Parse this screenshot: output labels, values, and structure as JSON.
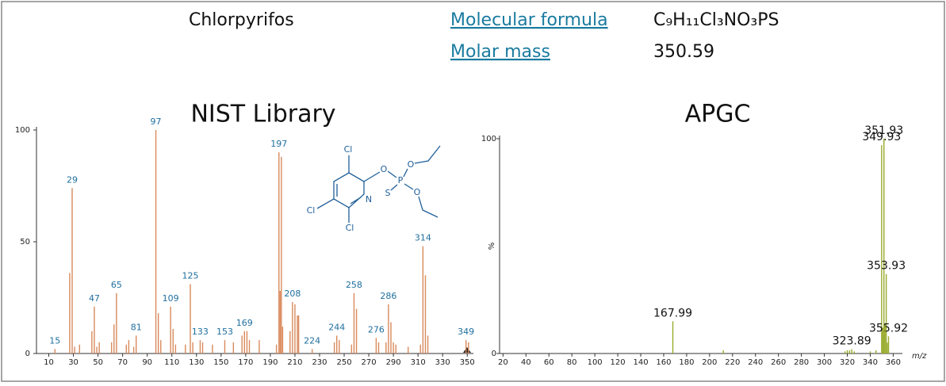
{
  "header": {
    "name": "Chlorpyrifos",
    "formula_label": "Molecular formula",
    "formula": "C₉H₁₁Cl₃NO₃PS",
    "mass_label": "Molar mass",
    "mass": "350.59"
  },
  "structure": {
    "atoms": [
      "Cl",
      "O",
      "O",
      "P",
      "S",
      "O",
      "N",
      "Cl",
      "Cl"
    ]
  },
  "chart_data": [
    {
      "type": "bar",
      "title": "NIST Library",
      "xlim": [
        0,
        355
      ],
      "xticks": [
        10,
        30,
        50,
        70,
        90,
        110,
        130,
        150,
        170,
        190,
        210,
        230,
        250,
        270,
        290,
        310,
        330,
        350
      ],
      "ylim": [
        0,
        100
      ],
      "yticks": [
        0,
        50,
        100
      ],
      "series": [
        {
          "color": "#d98a5c",
          "label_color": "#1f6f9e",
          "show_labels": true,
          "x": [
            15,
            29,
            47,
            65,
            81,
            97,
            109,
            125,
            133,
            153,
            169,
            197,
            208,
            224,
            244,
            258,
            276,
            286,
            314,
            349
          ],
          "values": [
            2,
            74,
            21,
            27,
            8,
            100,
            21,
            31,
            6,
            6,
            10,
            90,
            23,
            2,
            8,
            27,
            7,
            22,
            48,
            6
          ]
        },
        {
          "color": "#d98a5c",
          "show_labels": false,
          "x": [
            27,
            31,
            35,
            45,
            49,
            51,
            61,
            63,
            73,
            75,
            79,
            99,
            101,
            111,
            113,
            121,
            127,
            135,
            143,
            160,
            167,
            171,
            173,
            181,
            195,
            198,
            199,
            200,
            206,
            210,
            212,
            213,
            242,
            246,
            256,
            260,
            278,
            284,
            288,
            290,
            292,
            302,
            312,
            316,
            318,
            351
          ],
          "values": [
            36,
            3,
            4,
            10,
            3,
            5,
            5,
            13,
            4,
            6,
            3,
            18,
            6,
            11,
            4,
            4,
            5,
            5,
            4,
            5,
            8,
            10,
            6,
            6,
            4,
            28,
            88,
            12,
            10,
            22,
            17,
            17,
            5,
            6,
            4,
            20,
            5,
            5,
            14,
            5,
            4,
            3,
            4,
            35,
            8,
            5
          ]
        }
      ]
    },
    {
      "type": "bar",
      "title": "APGC",
      "xlabel": "m/z",
      "ylabel": "%",
      "xlim": [
        17,
        368
      ],
      "xticks": [
        20,
        40,
        60,
        80,
        100,
        120,
        140,
        160,
        180,
        200,
        220,
        240,
        260,
        280,
        300,
        320,
        340,
        360
      ],
      "ylim": [
        0,
        100
      ],
      "yticks": [
        0,
        100
      ],
      "series": [
        {
          "color": "#9aab2c",
          "label_color": "#111111",
          "show_labels": true,
          "x": [
            167.99,
            323.89,
            349.93,
            351.93,
            353.93,
            355.92
          ],
          "values": [
            15,
            2,
            97,
            100,
            37,
            8
          ]
        },
        {
          "color": "#9aab2c",
          "show_labels": false,
          "x": [
            212,
            318,
            320,
            322,
            326,
            340,
            345,
            350.9,
            352.9,
            354.9
          ],
          "values": [
            1.5,
            1,
            1.5,
            1.5,
            1,
            1,
            1.5,
            12,
            13,
            5
          ]
        }
      ]
    }
  ]
}
